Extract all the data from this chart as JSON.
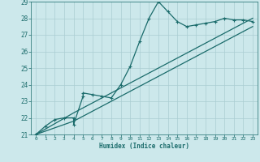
{
  "xlabel": "Humidex (Indice chaleur)",
  "bg_color": "#cce8eb",
  "grid_color": "#aacdd2",
  "line_color": "#1a6b6b",
  "xlim": [
    -0.5,
    23.5
  ],
  "ylim": [
    21,
    29
  ],
  "xticks": [
    0,
    1,
    2,
    3,
    4,
    5,
    6,
    7,
    8,
    9,
    10,
    11,
    12,
    13,
    14,
    15,
    16,
    17,
    18,
    19,
    20,
    21,
    22,
    23
  ],
  "yticks": [
    21,
    22,
    23,
    24,
    25,
    26,
    27,
    28,
    29
  ],
  "lines": [
    {
      "x": [
        0,
        1,
        2,
        3,
        4,
        4,
        5,
        5,
        6,
        7,
        8,
        9,
        10,
        11,
        12,
        13,
        14,
        15,
        16,
        17,
        18,
        19,
        20,
        21,
        22,
        23
      ],
      "y": [
        21,
        21.5,
        21.9,
        22.0,
        22.0,
        21.6,
        23.3,
        23.5,
        23.4,
        23.3,
        23.2,
        24.0,
        25.1,
        26.6,
        28.0,
        29.0,
        28.4,
        27.8,
        27.5,
        27.6,
        27.7,
        27.8,
        28.0,
        27.9,
        27.9,
        27.8
      ]
    },
    {
      "x": [
        0,
        4,
        23
      ],
      "y": [
        21,
        22.3,
        28.0
      ]
    },
    {
      "x": [
        0,
        4,
        23
      ],
      "y": [
        21,
        21.8,
        27.5
      ]
    }
  ]
}
